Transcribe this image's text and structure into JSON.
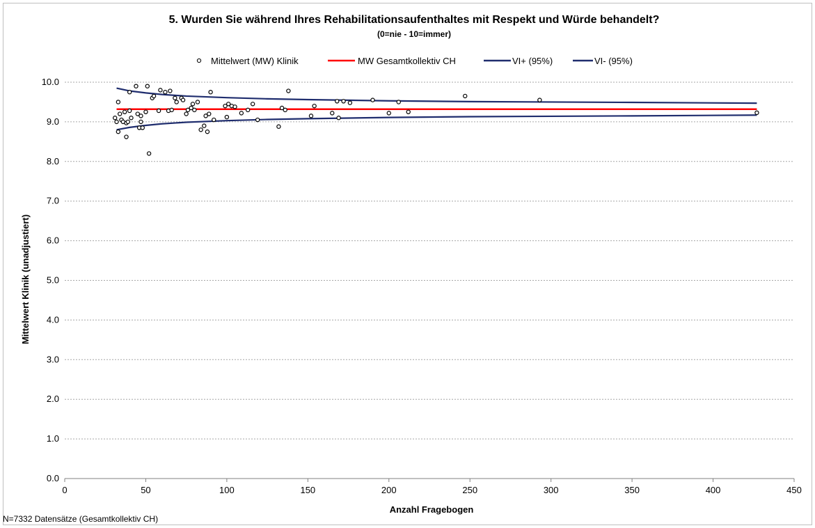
{
  "chart_data": {
    "type": "scatter",
    "title": "5. Wurden Sie während Ihres Rehabilitationsaufenthaltes mit Respekt und Würde behandelt?",
    "subtitle": "(0=nie - 10=immer)",
    "xlabel": "Anzahl Fragebogen",
    "ylabel": "Mittelwert Klinik (unadjustiert)",
    "xlim": [
      0,
      450
    ],
    "ylim": [
      0,
      10
    ],
    "x_ticks": [
      "0",
      "50",
      "100",
      "150",
      "200",
      "250",
      "300",
      "350",
      "400",
      "450"
    ],
    "y_ticks": [
      "0.0",
      "1.0",
      "2.0",
      "3.0",
      "4.0",
      "5.0",
      "6.0",
      "7.0",
      "8.0",
      "9.0",
      "10.0"
    ],
    "grid": "horizontal dotted",
    "legend_position": "top",
    "legend": [
      {
        "label": "Mittelwert (MW) Klinik",
        "marker": "circle"
      },
      {
        "label": "MW Gesamtkollektiv CH",
        "color": "#ff0000"
      },
      {
        "label": "VI+ (95%)",
        "color": "#1f2d6e"
      },
      {
        "label": "VI- (95%)",
        "color": "#1f2d6e"
      }
    ],
    "mean_ch": 9.32,
    "ci_curves": {
      "x": [
        32,
        40,
        50,
        60,
        75,
        100,
        125,
        150,
        200,
        250,
        300,
        350,
        427
      ],
      "upper": [
        9.85,
        9.78,
        9.73,
        9.69,
        9.65,
        9.61,
        9.58,
        9.56,
        9.53,
        9.51,
        9.5,
        9.49,
        9.47
      ],
      "lower": [
        8.8,
        8.86,
        8.91,
        8.95,
        8.99,
        9.03,
        9.06,
        9.08,
        9.11,
        9.13,
        9.14,
        9.15,
        9.17
      ]
    },
    "series": [
      {
        "name": "Mittelwert (MW) Klinik",
        "points": [
          [
            31,
            9.1
          ],
          [
            32,
            9.0
          ],
          [
            33,
            8.75
          ],
          [
            33,
            9.5
          ],
          [
            34,
            9.2
          ],
          [
            35,
            9.05
          ],
          [
            36,
            9.0
          ],
          [
            37,
            9.25
          ],
          [
            38,
            8.62
          ],
          [
            38,
            8.97
          ],
          [
            39,
            9.0
          ],
          [
            40,
            9.28
          ],
          [
            40,
            9.75
          ],
          [
            41,
            9.1
          ],
          [
            44,
            9.9
          ],
          [
            45,
            9.2
          ],
          [
            46,
            8.85
          ],
          [
            47,
            9.15
          ],
          [
            47,
            9.0
          ],
          [
            48,
            8.85
          ],
          [
            50,
            9.25
          ],
          [
            51,
            9.9
          ],
          [
            52,
            8.2
          ],
          [
            54,
            9.6
          ],
          [
            55,
            9.65
          ],
          [
            58,
            9.28
          ],
          [
            59,
            9.8
          ],
          [
            62,
            9.75
          ],
          [
            64,
            9.28
          ],
          [
            65,
            9.78
          ],
          [
            66,
            9.3
          ],
          [
            68,
            9.6
          ],
          [
            69,
            9.5
          ],
          [
            72,
            9.6
          ],
          [
            73,
            9.55
          ],
          [
            75,
            9.2
          ],
          [
            76,
            9.3
          ],
          [
            78,
            9.35
          ],
          [
            79,
            9.45
          ],
          [
            80,
            9.3
          ],
          [
            82,
            9.5
          ],
          [
            84,
            8.8
          ],
          [
            86,
            8.9
          ],
          [
            87,
            9.15
          ],
          [
            88,
            8.75
          ],
          [
            89,
            9.2
          ],
          [
            90,
            9.75
          ],
          [
            92,
            9.05
          ],
          [
            99,
            9.4
          ],
          [
            100,
            9.12
          ],
          [
            101,
            9.45
          ],
          [
            103,
            9.4
          ],
          [
            105,
            9.38
          ],
          [
            109,
            9.22
          ],
          [
            113,
            9.3
          ],
          [
            116,
            9.45
          ],
          [
            119,
            9.05
          ],
          [
            132,
            8.88
          ],
          [
            134,
            9.35
          ],
          [
            136,
            9.3
          ],
          [
            138,
            9.78
          ],
          [
            152,
            9.15
          ],
          [
            154,
            9.4
          ],
          [
            165,
            9.22
          ],
          [
            168,
            9.52
          ],
          [
            169,
            9.1
          ],
          [
            172,
            9.52
          ],
          [
            176,
            9.48
          ],
          [
            190,
            9.55
          ],
          [
            200,
            9.22
          ],
          [
            206,
            9.5
          ],
          [
            212,
            9.25
          ],
          [
            247,
            9.65
          ],
          [
            293,
            9.55
          ],
          [
            427,
            9.23
          ]
        ]
      }
    ]
  },
  "footnote": "N=7332 Datensätze (Gesamtkollektiv CH)"
}
